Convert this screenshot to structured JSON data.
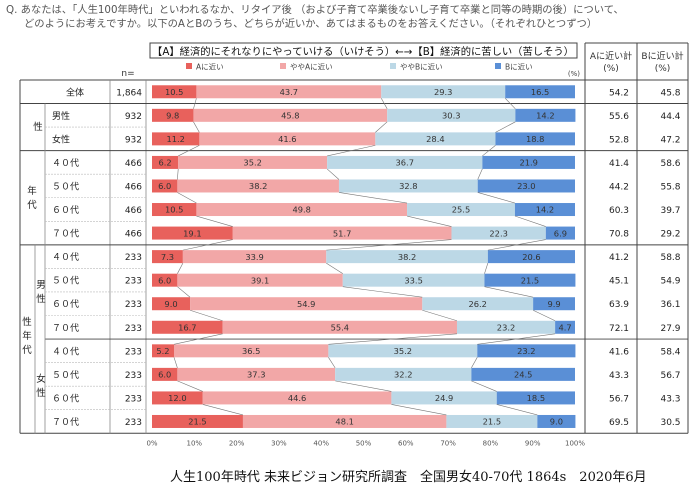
{
  "question": {
    "line1": "Q. あなたは、「人生100年時代」といわれるなか、リタイア後 （および子育て卒業後ないし子育て卒業と同等の時期の後）について、",
    "line2": "どのようにお考えですか。以下のAとBのうち、どちらが近いか、あてはまるものをお答えください。（それぞれひとつずつ）"
  },
  "footer": "人生100年時代 未来ビジョン研究所調査　全国男女40-70代 1864s　2020年6月",
  "chart_data": {
    "type": "bar",
    "orientation": "horizontal",
    "stacked": "percent",
    "title": "【A】経済的にそれなりにやっていける（いけそう）←→【B】経済的に苦しい（苦しそう）",
    "n_header": "n=",
    "unit_label": "(%)",
    "summary_headers": [
      "Aに近い計\n(%)",
      "Bに近い計\n(%)"
    ],
    "legend": [
      "Aに近い",
      "ややAに近い",
      "ややBに近い",
      "Bに近い"
    ],
    "colors": [
      "#e8615c",
      "#f2a7a7",
      "#bcd8e6",
      "#5a8fd6"
    ],
    "xlim": [
      0,
      100
    ],
    "xticks": [
      "0%",
      "10%",
      "20%",
      "30%",
      "40%",
      "50%",
      "60%",
      "70%",
      "80%",
      "90%",
      "100%"
    ],
    "groups": [
      {
        "name": "",
        "sub": "",
        "start": 0,
        "end": 0
      },
      {
        "name": "性",
        "sub": "",
        "start": 1,
        "end": 2
      },
      {
        "name": "年代",
        "sub": "",
        "start": 3,
        "end": 6
      },
      {
        "name": "性年代",
        "sub": "男性",
        "start": 7,
        "end": 10
      },
      {
        "name": "性年代",
        "sub": "女性",
        "start": 11,
        "end": 14
      }
    ],
    "outer_groups": [
      {
        "name": "性年代",
        "start": 7,
        "end": 14
      }
    ],
    "sub_groups": [
      {
        "name": "男性",
        "start": 7,
        "end": 10
      },
      {
        "name": "女性",
        "start": 11,
        "end": 14
      }
    ],
    "rows": [
      {
        "label": "全体",
        "n": "1,864",
        "values": [
          10.5,
          43.7,
          29.3,
          16.5
        ],
        "a": "54.2",
        "b": "45.8"
      },
      {
        "label": "男性",
        "n": "932",
        "values": [
          9.8,
          45.8,
          30.3,
          14.2
        ],
        "a": "55.6",
        "b": "44.4"
      },
      {
        "label": "女性",
        "n": "932",
        "values": [
          11.2,
          41.6,
          28.4,
          18.8
        ],
        "a": "52.8",
        "b": "47.2"
      },
      {
        "label": "４０代",
        "n": "466",
        "values": [
          6.2,
          35.2,
          36.7,
          21.9
        ],
        "a": "41.4",
        "b": "58.6"
      },
      {
        "label": "５０代",
        "n": "466",
        "values": [
          6.0,
          38.2,
          32.8,
          23.0
        ],
        "a": "44.2",
        "b": "55.8"
      },
      {
        "label": "６０代",
        "n": "466",
        "values": [
          10.5,
          49.8,
          25.5,
          14.2
        ],
        "a": "60.3",
        "b": "39.7"
      },
      {
        "label": "７０代",
        "n": "466",
        "values": [
          19.1,
          51.7,
          22.3,
          6.9
        ],
        "a": "70.8",
        "b": "29.2"
      },
      {
        "label": "４０代",
        "n": "233",
        "values": [
          7.3,
          33.9,
          38.2,
          20.6
        ],
        "a": "41.2",
        "b": "58.8"
      },
      {
        "label": "５０代",
        "n": "233",
        "values": [
          6.0,
          39.1,
          33.5,
          21.5
        ],
        "a": "45.1",
        "b": "54.9"
      },
      {
        "label": "６０代",
        "n": "233",
        "values": [
          9.0,
          54.9,
          26.2,
          9.9
        ],
        "a": "63.9",
        "b": "36.1"
      },
      {
        "label": "７０代",
        "n": "233",
        "values": [
          16.7,
          55.4,
          23.2,
          4.7
        ],
        "a": "72.1",
        "b": "27.9"
      },
      {
        "label": "４０代",
        "n": "233",
        "values": [
          5.2,
          36.5,
          35.2,
          23.2
        ],
        "a": "41.6",
        "b": "58.4"
      },
      {
        "label": "５０代",
        "n": "233",
        "values": [
          6.0,
          37.3,
          32.2,
          24.5
        ],
        "a": "43.3",
        "b": "56.7"
      },
      {
        "label": "６０代",
        "n": "233",
        "values": [
          12.0,
          44.6,
          24.9,
          18.5
        ],
        "a": "56.7",
        "b": "43.3"
      },
      {
        "label": "７０代",
        "n": "233",
        "values": [
          21.5,
          48.1,
          21.5,
          9.0
        ],
        "a": "69.5",
        "b": "30.5"
      }
    ]
  }
}
